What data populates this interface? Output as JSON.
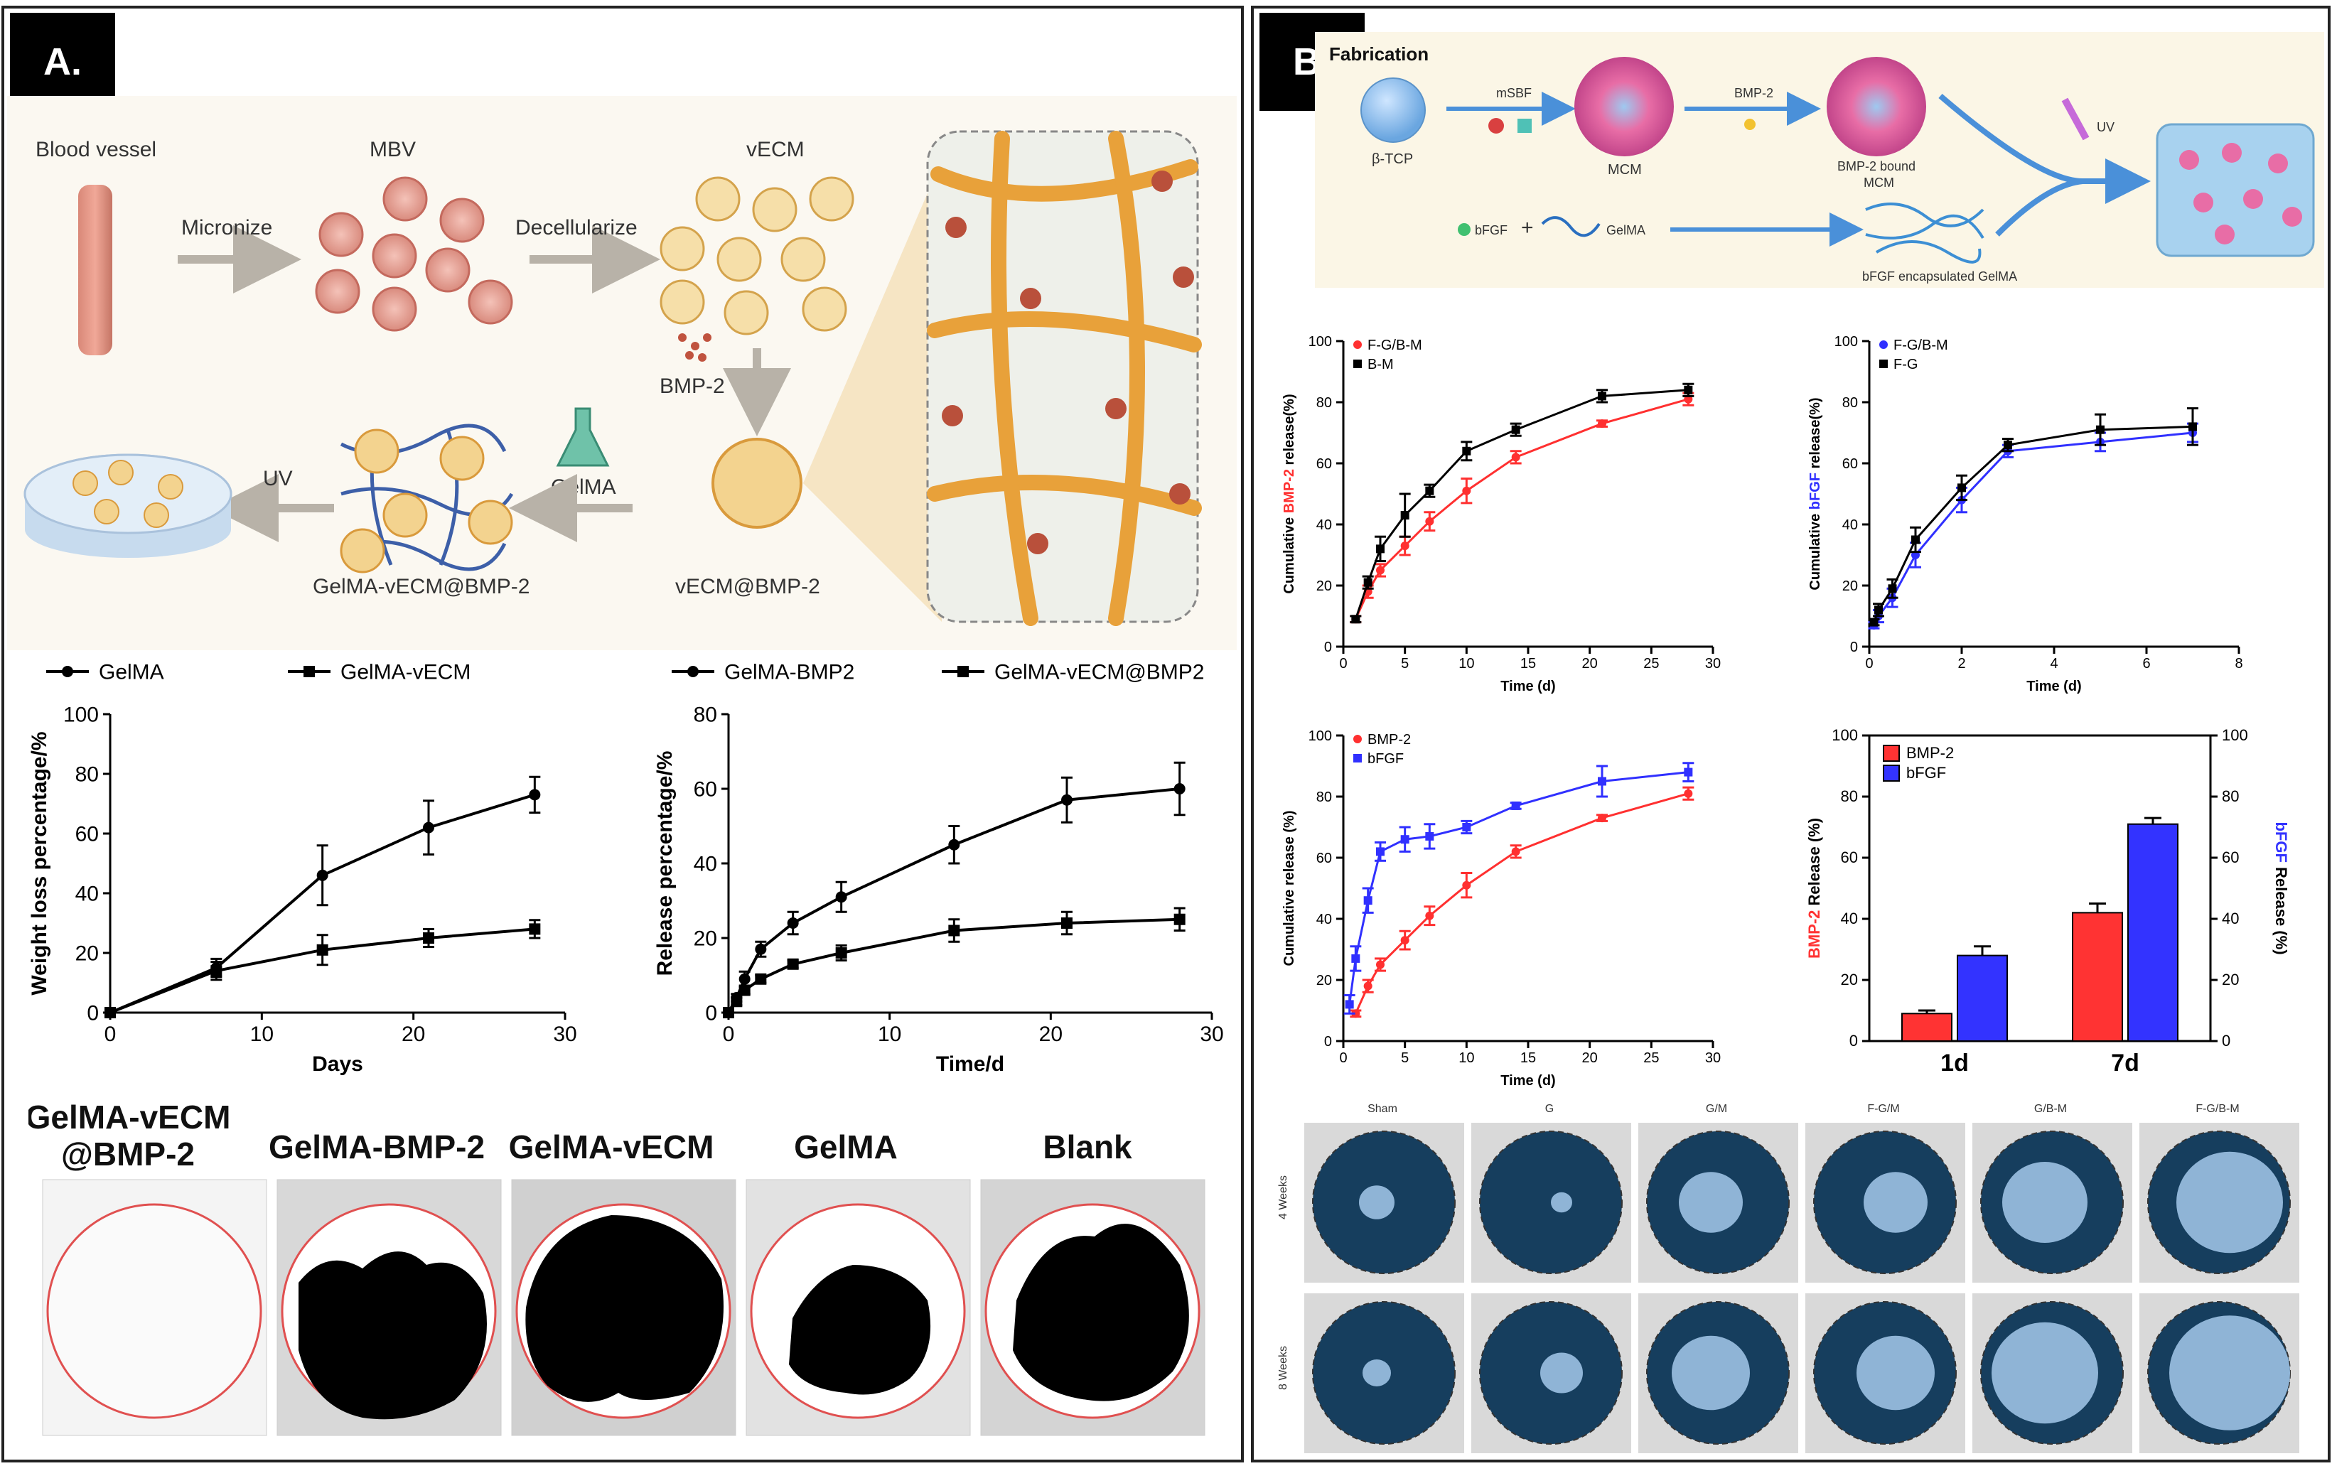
{
  "panelA": {
    "letter": "A.",
    "schematic": {
      "blood_vessel": "Blood vessel",
      "mbv": "MBV",
      "vecm": "vECM",
      "micronize": "Micronize",
      "decellularize": "Decellularize",
      "bmp2": "BMP-2",
      "gelma": "GelMA",
      "uv": "UV",
      "gelma_vecm_bmp2": "GelMA-vECM@BMP-2",
      "vecm_bmp2": "vECM@BMP-2"
    },
    "bottom_labels": [
      "GelMA-vECM",
      "@BMP-2",
      "GelMA-BMP-2",
      "GelMA-vECM",
      "GelMA",
      "Blank"
    ]
  },
  "panelB": {
    "letter": "B.",
    "fabrication": {
      "title": "Fabrication",
      "btcp": "β-TCP",
      "msbf": "mSBF",
      "mcm": "MCM",
      "bmp2": "BMP-2",
      "bmp2_bound": "BMP-2 bound",
      "mcm2": "MCM",
      "uv": "UV",
      "bfgf": "bFGF",
      "gelma": "GelMA",
      "bfgf_gelma": "bFGF encapsulated GelMA"
    },
    "col_labels": [
      "Sham",
      "G",
      "G/M",
      "F-G/M",
      "G/B-M",
      "F-G/B-M"
    ],
    "row_labels": [
      "4 Weeks",
      "8 Weeks"
    ]
  },
  "chart_data": [
    {
      "id": "A1",
      "type": "line",
      "xlabel": "Days",
      "ylabel": "Weight loss percentage/%",
      "xlim": [
        0,
        30
      ],
      "ylim": [
        0,
        100
      ],
      "xticks": [
        0,
        10,
        20,
        30
      ],
      "yticks": [
        0,
        20,
        40,
        60,
        80,
        100
      ],
      "legend": "top",
      "series": [
        {
          "name": "GelMA",
          "marker": "circle",
          "color": "#000000",
          "x": [
            0,
            7,
            14,
            21,
            28
          ],
          "y": [
            0,
            15,
            46,
            62,
            73
          ],
          "err": [
            0,
            3,
            10,
            9,
            6
          ]
        },
        {
          "name": "GelMA-vECM",
          "marker": "square",
          "color": "#000000",
          "x": [
            0,
            7,
            14,
            21,
            28
          ],
          "y": [
            0,
            14,
            21,
            25,
            28
          ],
          "err": [
            0,
            3,
            5,
            3,
            3
          ]
        }
      ]
    },
    {
      "id": "A2",
      "type": "line",
      "xlabel": "Time/d",
      "ylabel": "Release percentage/%",
      "xlim": [
        0,
        30
      ],
      "ylim": [
        0,
        80
      ],
      "xticks": [
        0,
        10,
        20,
        30
      ],
      "yticks": [
        0,
        20,
        40,
        60,
        80
      ],
      "legend": "top",
      "series": [
        {
          "name": "GelMA-BMP2",
          "marker": "circle",
          "color": "#000000",
          "x": [
            0,
            0.5,
            1,
            2,
            4,
            7,
            14,
            21,
            28
          ],
          "y": [
            0,
            4,
            9,
            17,
            24,
            31,
            45,
            57,
            60
          ],
          "err": [
            0,
            1,
            2,
            2,
            3,
            4,
            5,
            6,
            7
          ]
        },
        {
          "name": "GelMA-vECM@BMP2",
          "marker": "square",
          "color": "#000000",
          "x": [
            0,
            0.5,
            1,
            2,
            4,
            7,
            14,
            21,
            28
          ],
          "y": [
            0,
            3,
            6,
            9,
            13,
            16,
            22,
            24,
            25
          ],
          "err": [
            0,
            1,
            1,
            1,
            1,
            2,
            3,
            3,
            3
          ]
        }
      ]
    },
    {
      "id": "B1",
      "type": "line",
      "xlabel": "Time (d)",
      "ylabel": "Cumulative BMP-2 release(%)",
      "xlim": [
        0,
        30
      ],
      "ylim": [
        0,
        100
      ],
      "xticks": [
        0,
        5,
        10,
        15,
        20,
        25,
        30
      ],
      "yticks": [
        0,
        20,
        40,
        60,
        80,
        100
      ],
      "legend": "top-left",
      "series": [
        {
          "name": "F-G/B-M",
          "marker": "circle",
          "color": "#ff3030",
          "x": [
            1,
            2,
            3,
            5,
            7,
            10,
            14,
            21,
            28
          ],
          "y": [
            9,
            18,
            25,
            33,
            41,
            51,
            62,
            73,
            81
          ],
          "err": [
            1,
            2,
            2,
            3,
            3,
            4,
            2,
            1,
            2
          ]
        },
        {
          "name": "B-M",
          "marker": "square",
          "color": "#000000",
          "x": [
            1,
            2,
            3,
            5,
            7,
            10,
            14,
            21,
            28
          ],
          "y": [
            9,
            21,
            32,
            43,
            51,
            64,
            71,
            82,
            84
          ],
          "err": [
            1,
            2,
            4,
            7,
            2,
            3,
            2,
            2,
            2
          ]
        }
      ]
    },
    {
      "id": "B2",
      "type": "line",
      "xlabel": "Time (d)",
      "ylabel": "Cumulative bFGF release(%)",
      "xlim": [
        0,
        8
      ],
      "ylim": [
        0,
        100
      ],
      "xticks": [
        0,
        2,
        4,
        6,
        8
      ],
      "yticks": [
        0,
        20,
        40,
        60,
        80,
        100
      ],
      "legend": "top-left",
      "series": [
        {
          "name": "F-G/B-M",
          "marker": "circle",
          "color": "#3030ff",
          "x": [
            0.1,
            0.2,
            0.5,
            1,
            2,
            3,
            5,
            7
          ],
          "y": [
            7,
            10,
            16,
            30,
            48,
            64,
            67,
            70
          ],
          "err": [
            1,
            2,
            3,
            4,
            4,
            2,
            3,
            3
          ]
        },
        {
          "name": "F-G",
          "marker": "square",
          "color": "#000000",
          "x": [
            0.1,
            0.2,
            0.5,
            1,
            2,
            3,
            5,
            7
          ],
          "y": [
            8,
            12,
            19,
            35,
            52,
            66,
            71,
            72
          ],
          "err": [
            1,
            2,
            3,
            4,
            4,
            2,
            5,
            6
          ]
        }
      ]
    },
    {
      "id": "B3",
      "type": "line",
      "xlabel": "Time (d)",
      "ylabel": "Cumulative release (%)",
      "xlim": [
        0,
        30
      ],
      "ylim": [
        0,
        100
      ],
      "xticks": [
        0,
        5,
        10,
        15,
        20,
        25,
        30
      ],
      "yticks": [
        0,
        20,
        40,
        60,
        80,
        100
      ],
      "legend": "top-left",
      "series": [
        {
          "name": "BMP-2",
          "marker": "circle",
          "color": "#ff3030",
          "x": [
            1,
            2,
            3,
            5,
            7,
            10,
            14,
            21,
            28
          ],
          "y": [
            9,
            18,
            25,
            33,
            41,
            51,
            62,
            73,
            81
          ],
          "err": [
            1,
            2,
            2,
            3,
            3,
            4,
            2,
            1,
            2
          ]
        },
        {
          "name": "bFGF",
          "marker": "square",
          "color": "#3030ff",
          "x": [
            0.5,
            1,
            2,
            3,
            5,
            7,
            10,
            14,
            21,
            28
          ],
          "y": [
            12,
            27,
            46,
            62,
            66,
            67,
            70,
            77,
            85,
            88
          ],
          "err": [
            3,
            4,
            4,
            3,
            4,
            4,
            2,
            1,
            5,
            3
          ]
        }
      ]
    },
    {
      "id": "B4",
      "type": "bar",
      "ylabel": "BMP-2 Release (%)",
      "y2label": "bFGF Release (%)",
      "categories": [
        "1d",
        "7d"
      ],
      "ylim": [
        0,
        100
      ],
      "yticks": [
        0,
        20,
        40,
        60,
        80,
        100
      ],
      "legend": "top-left",
      "series": [
        {
          "name": "BMP-2",
          "color": "#ff3333",
          "values": [
            9,
            42
          ],
          "err": [
            1,
            3
          ]
        },
        {
          "name": "bFGF",
          "color": "#3333ff",
          "values": [
            28,
            71
          ],
          "err": [
            3,
            2
          ]
        }
      ]
    }
  ]
}
